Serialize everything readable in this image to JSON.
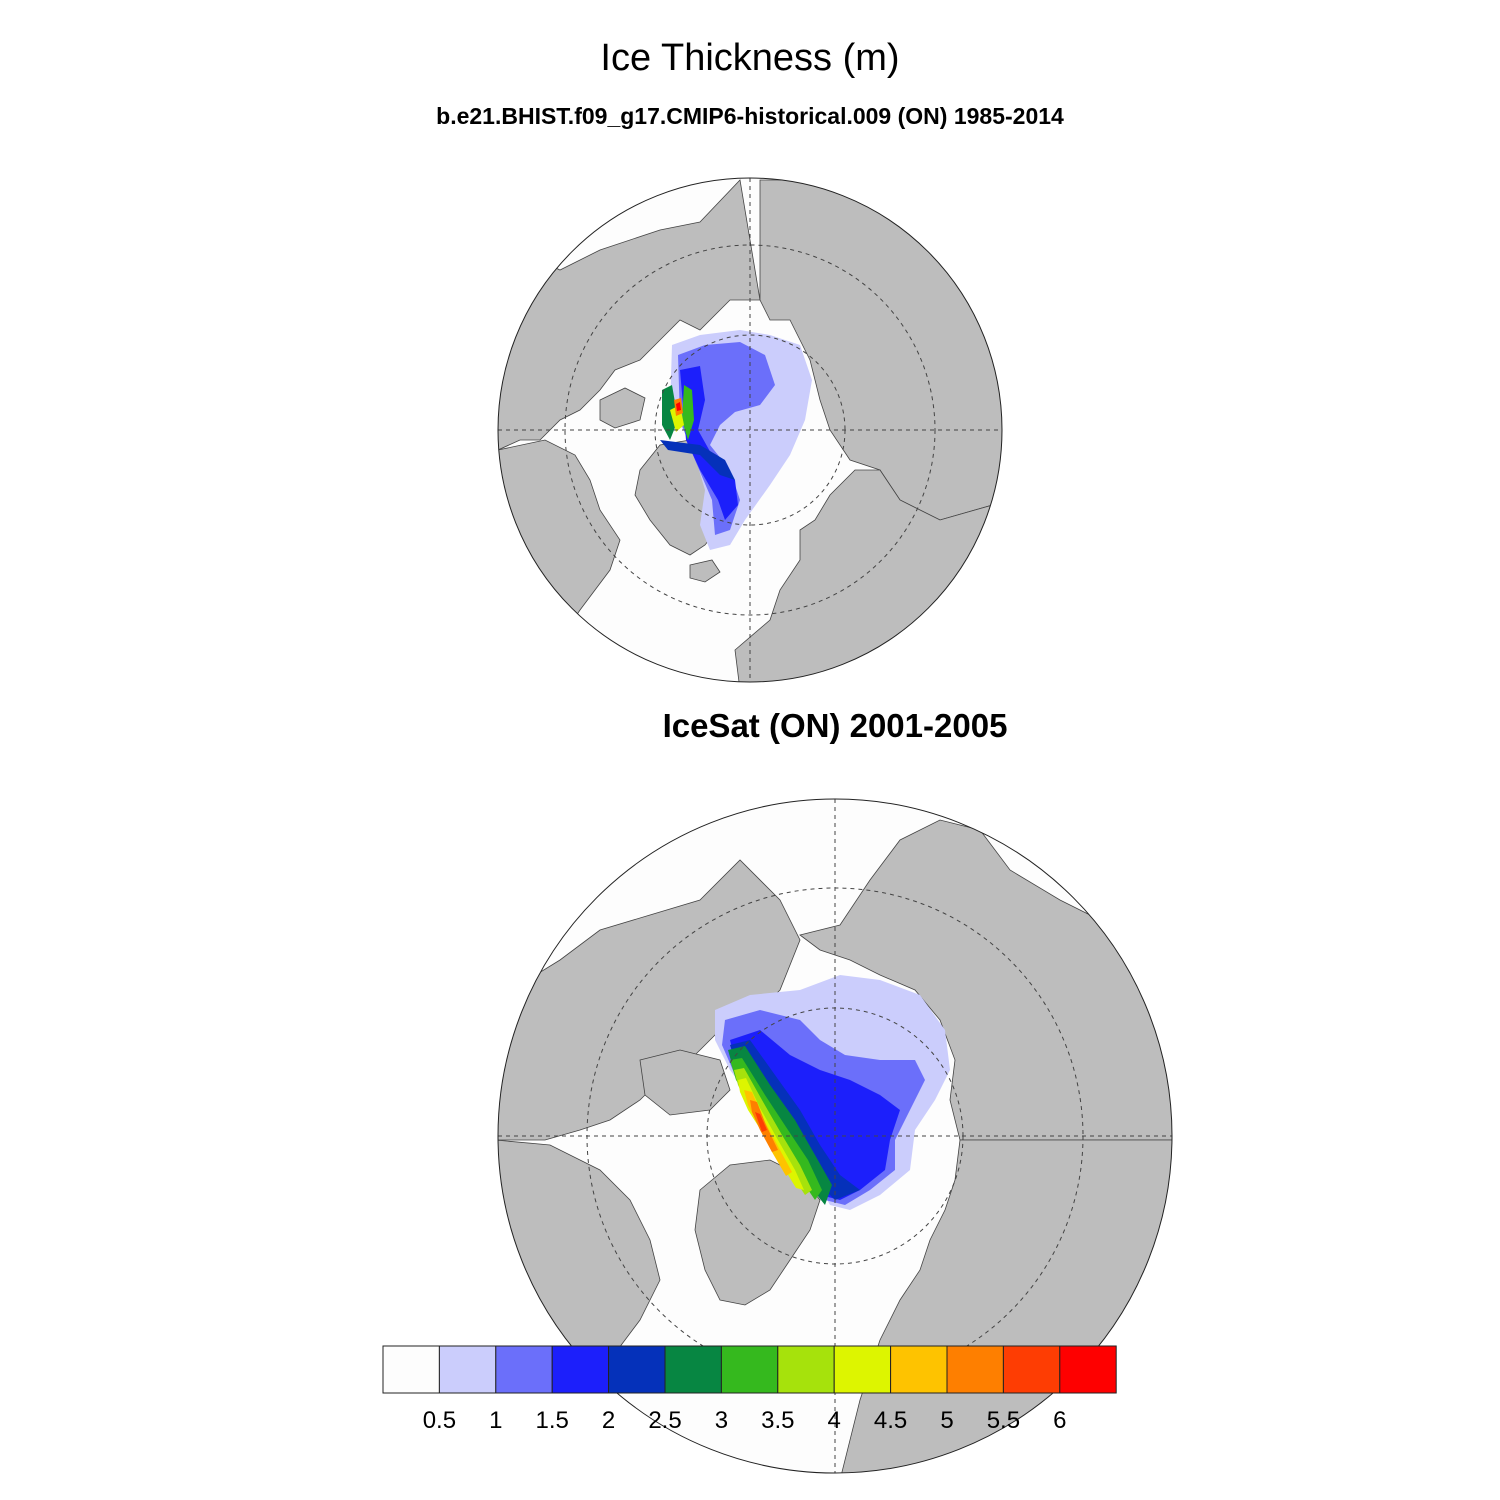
{
  "title": "Ice Thickness (m)",
  "panels": [
    {
      "subtitle": "b.e21.BHIST.f09_g17.CMIP6-historical.009 (ON) 1985-2014"
    },
    {
      "subtitle": "IceSat (ON) 2001-2005"
    }
  ],
  "colorbar": {
    "labels": [
      "0.5",
      "1",
      "1.5",
      "2",
      "2.5",
      "3",
      "3.5",
      "4",
      "4.5",
      "5",
      "5.5",
      "6"
    ],
    "colors": [
      "#fdfdfd",
      "#cbcdfc",
      "#6b6ffa",
      "#1c1ffb",
      "#0531ba",
      "#078642",
      "#35b91e",
      "#a6e20c",
      "#ddf500",
      "#fec300",
      "#fe7f00",
      "#fe3d03",
      "#fe0000"
    ]
  },
  "style": {
    "land": "#bdbdbd",
    "ocean": "#fdfdfd"
  }
}
